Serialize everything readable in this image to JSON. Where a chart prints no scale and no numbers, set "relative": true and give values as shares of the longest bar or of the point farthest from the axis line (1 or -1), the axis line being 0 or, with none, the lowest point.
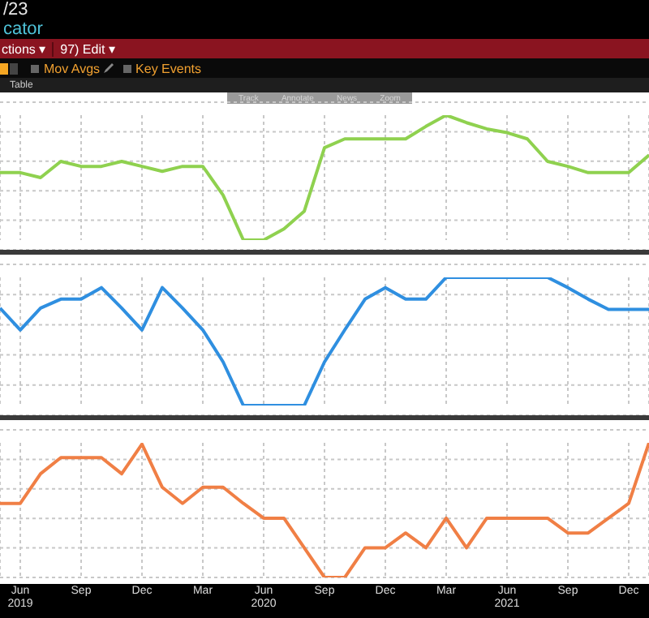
{
  "chart_data": [
    {
      "type": "line",
      "relative": true,
      "title": "/23",
      "subtitle": "cator",
      "annotations": [
        "ctions ▾",
        "97) Edit ▾",
        "Mov Avgs",
        "Key Events",
        "Table",
        "Track",
        "Annotate",
        "News",
        "Zoom"
      ],
      "grid": true,
      "tick_labels": false,
      "series": [
        {
          "color": "#8fd14f",
          "values": [
            0.54,
            0.54,
            0.5,
            0.63,
            0.59,
            0.59,
            0.63,
            0.59,
            0.55,
            0.59,
            0.59,
            0.36,
            0,
            0,
            0.09,
            0.23,
            0.74,
            0.81,
            0.81,
            0.81,
            0.81,
            0.91,
            1,
            0.94,
            0.89,
            0.86,
            0.81,
            0.63,
            0.59,
            0.54,
            0.54,
            0.54,
            0.68
          ]
        }
      ]
    },
    {
      "type": "line",
      "relative": true,
      "grid": true,
      "tick_labels": false,
      "series": [
        {
          "color": "#2f8fe0",
          "values": [
            0.76,
            0.59,
            0.76,
            0.83,
            0.83,
            0.92,
            0.76,
            0.59,
            0.92,
            0.76,
            0.59,
            0.34,
            0,
            0,
            0,
            0,
            0.34,
            0.59,
            0.83,
            0.92,
            0.83,
            0.83,
            1,
            1,
            1,
            1,
            1,
            1,
            0.92,
            0.83,
            0.75,
            0.75,
            0.75
          ]
        }
      ]
    },
    {
      "type": "line",
      "relative": true,
      "grid": true,
      "categories": [
        null,
        "Jun 2019",
        null,
        null,
        "Sep",
        null,
        null,
        "Dec",
        null,
        null,
        "Mar",
        null,
        null,
        "Jun 2020",
        null,
        null,
        "Sep",
        null,
        null,
        "Dec",
        null,
        null,
        "Mar",
        null,
        null,
        "Jun 2021",
        null,
        null,
        "Sep",
        null,
        null,
        "Dec",
        null
      ],
      "series": [
        {
          "color": "#f07f45",
          "values": [
            0.55,
            0.55,
            0.77,
            0.89,
            0.89,
            0.89,
            0.77,
            0.99,
            0.67,
            0.55,
            0.67,
            0.67,
            0.55,
            0.44,
            0.44,
            0.22,
            0,
            0,
            0.22,
            0.22,
            0.33,
            0.22,
            0.44,
            0.22,
            0.44,
            0.44,
            0.44,
            0.44,
            0.33,
            0.33,
            0.44,
            0.55,
            1
          ]
        }
      ]
    }
  ]
}
